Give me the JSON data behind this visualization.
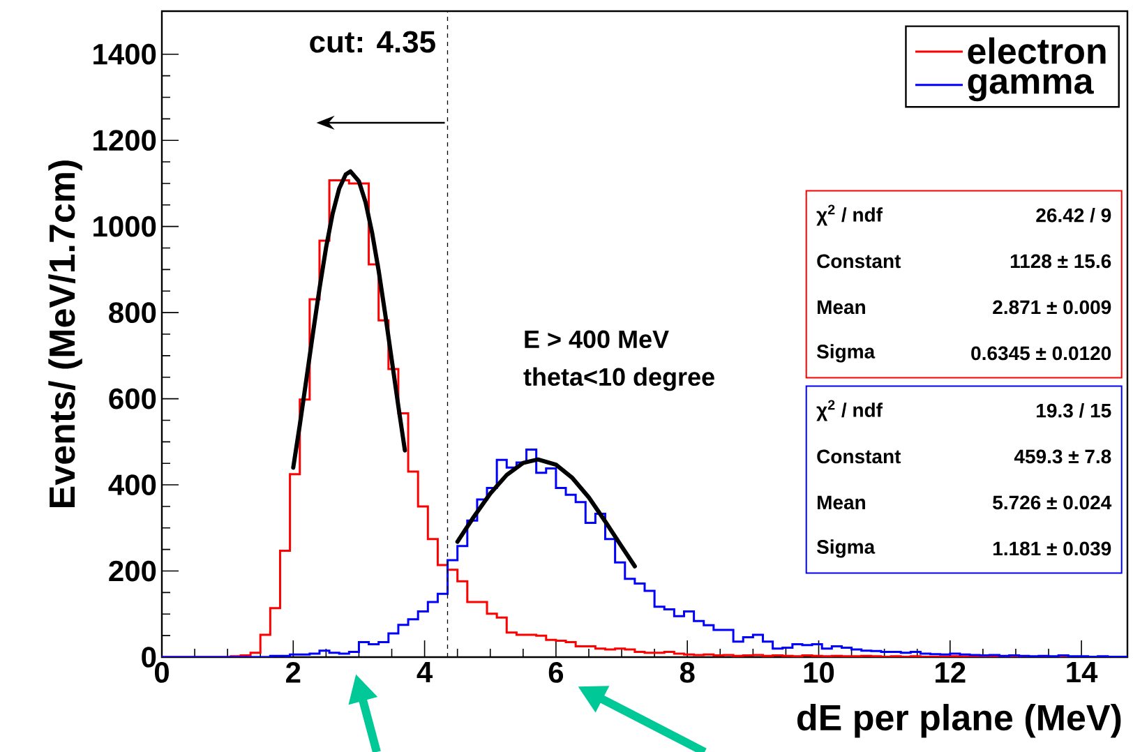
{
  "chart_data": {
    "type": "histogram",
    "xlabel": "dE per plane (MeV)",
    "ylabel": "Events/ (MeV/1.7cm)",
    "xlim": [
      0,
      14.7
    ],
    "ylim": [
      0,
      1500
    ],
    "xticks": [
      0,
      2,
      4,
      6,
      8,
      10,
      12,
      14
    ],
    "yticks": [
      0,
      200,
      400,
      600,
      800,
      1000,
      1200,
      1400
    ],
    "legend": "top right",
    "bins": [
      0,
      0.15,
      0.3,
      0.45,
      0.6,
      0.75,
      0.9,
      1.05,
      1.2,
      1.35,
      1.5,
      1.65,
      1.8,
      1.95,
      2.1,
      2.25,
      2.4,
      2.55,
      2.7,
      2.85,
      3,
      3.15,
      3.3,
      3.45,
      3.6,
      3.75,
      3.9,
      4.05,
      4.2,
      4.35,
      4.5,
      4.65,
      4.8,
      4.95,
      5.1,
      5.25,
      5.4,
      5.55,
      5.7,
      5.85,
      6,
      6.15,
      6.3,
      6.45,
      6.6,
      6.75,
      6.9,
      7.05,
      7.2,
      7.35,
      7.5,
      7.65,
      7.8,
      7.95,
      8.1,
      8.25,
      8.4,
      8.55,
      8.7,
      8.85,
      9,
      9.15,
      9.3,
      9.45,
      9.6,
      9.75,
      9.9,
      10.05,
      10.2,
      10.35,
      10.5,
      10.65,
      10.8,
      10.95,
      11.1,
      11.25,
      11.4,
      11.55,
      11.7,
      11.85,
      12,
      12.15,
      12.3,
      12.45,
      12.6,
      12.75,
      12.9,
      13.05,
      13.2,
      13.35,
      13.5,
      13.65,
      13.8,
      13.95,
      14.1,
      14.25,
      14.4,
      14.55,
      14.7
    ],
    "series": [
      {
        "name": "electron",
        "color": "#ff0000",
        "values": [
          0,
          0,
          0,
          0,
          0,
          0,
          0,
          2,
          4,
          10,
          52,
          114,
          247,
          425,
          598,
          831,
          967,
          1107,
          1107,
          1100,
          1100,
          912,
          782,
          669,
          566,
          431,
          350,
          274,
          214,
          203,
          176,
          128,
          128,
          101,
          92,
          57,
          52,
          52,
          50,
          40,
          38,
          35,
          25,
          25,
          20,
          18,
          20,
          18,
          12,
          10,
          10,
          12,
          8,
          6,
          5,
          6,
          4,
          5,
          3,
          4,
          5,
          3,
          4,
          3,
          2,
          4,
          3,
          2,
          3,
          2,
          2,
          3,
          2,
          1,
          2,
          1,
          2,
          1,
          1,
          1,
          2,
          1,
          1,
          0,
          1,
          0,
          0,
          0,
          0,
          0,
          0,
          0,
          0,
          0,
          0,
          0,
          0,
          0
        ]
      },
      {
        "name": "gamma",
        "color": "#0000ff",
        "values": [
          0,
          0,
          0,
          0,
          0,
          0,
          0,
          0,
          0,
          0,
          0,
          3,
          3,
          6,
          6,
          8,
          15,
          10,
          8,
          12,
          35,
          30,
          35,
          55,
          75,
          88,
          106,
          128,
          147,
          225,
          258,
          317,
          366,
          393,
          458,
          440,
          452,
          482,
          428,
          438,
          393,
          377,
          360,
          312,
          333,
          274,
          220,
          182,
          171,
          154,
          117,
          111,
          95,
          106,
          84,
          74,
          63,
          63,
          36,
          46,
          52,
          36,
          20,
          22,
          30,
          28,
          30,
          20,
          25,
          22,
          18,
          15,
          14,
          12,
          12,
          10,
          12,
          8,
          7,
          6,
          8,
          6,
          5,
          4,
          5,
          3,
          4,
          3,
          2,
          3,
          2,
          4,
          2,
          2,
          1,
          2,
          1,
          1
        ]
      },
      {
        "type": "line",
        "color": "#000000",
        "x": [
          2.0,
          2.1,
          2.2,
          2.3,
          2.4,
          2.5,
          2.6,
          2.7,
          2.8,
          2.871,
          3.0,
          3.1,
          3.2,
          3.3,
          3.4,
          3.5,
          3.6,
          3.7
        ],
        "values": [
          440,
          539,
          645,
          752,
          856,
          951,
          1030,
          1088,
          1121,
          1128,
          1105,
          1057,
          986,
          898,
          797,
          690,
          583,
          480
        ]
      },
      {
        "type": "line",
        "color": "#000000",
        "x": [
          4.5,
          4.75,
          5.0,
          5.25,
          5.5,
          5.726,
          6.0,
          6.25,
          6.5,
          6.75,
          7.0,
          7.2
        ],
        "values": [
          268,
          326,
          380,
          423,
          451,
          459,
          447,
          416,
          371,
          315,
          257,
          211
        ]
      }
    ],
    "ref_lines": [
      {
        "axis": "x",
        "value": 4.35,
        "label": "cut: 4.35",
        "line_style": "dashed",
        "color": "#000000"
      }
    ],
    "annotations": [
      "E > 400 MeV",
      "theta<10 degree",
      "χ$^{2}$ / ndf",
      "26.42 / 9",
      "Constant",
      "1128 ± 15.6",
      "Mean",
      "2.871 ± 0.009",
      "Sigma",
      "0.6345 ± 0.0120",
      "χ$^{2}$ / ndf",
      "19.3 / 15",
      "Constant",
      "459.3 ± 7.8",
      "Mean",
      "5.726 ± 0.024",
      "Sigma",
      "1.181 ± 0.039"
    ]
  }
}
